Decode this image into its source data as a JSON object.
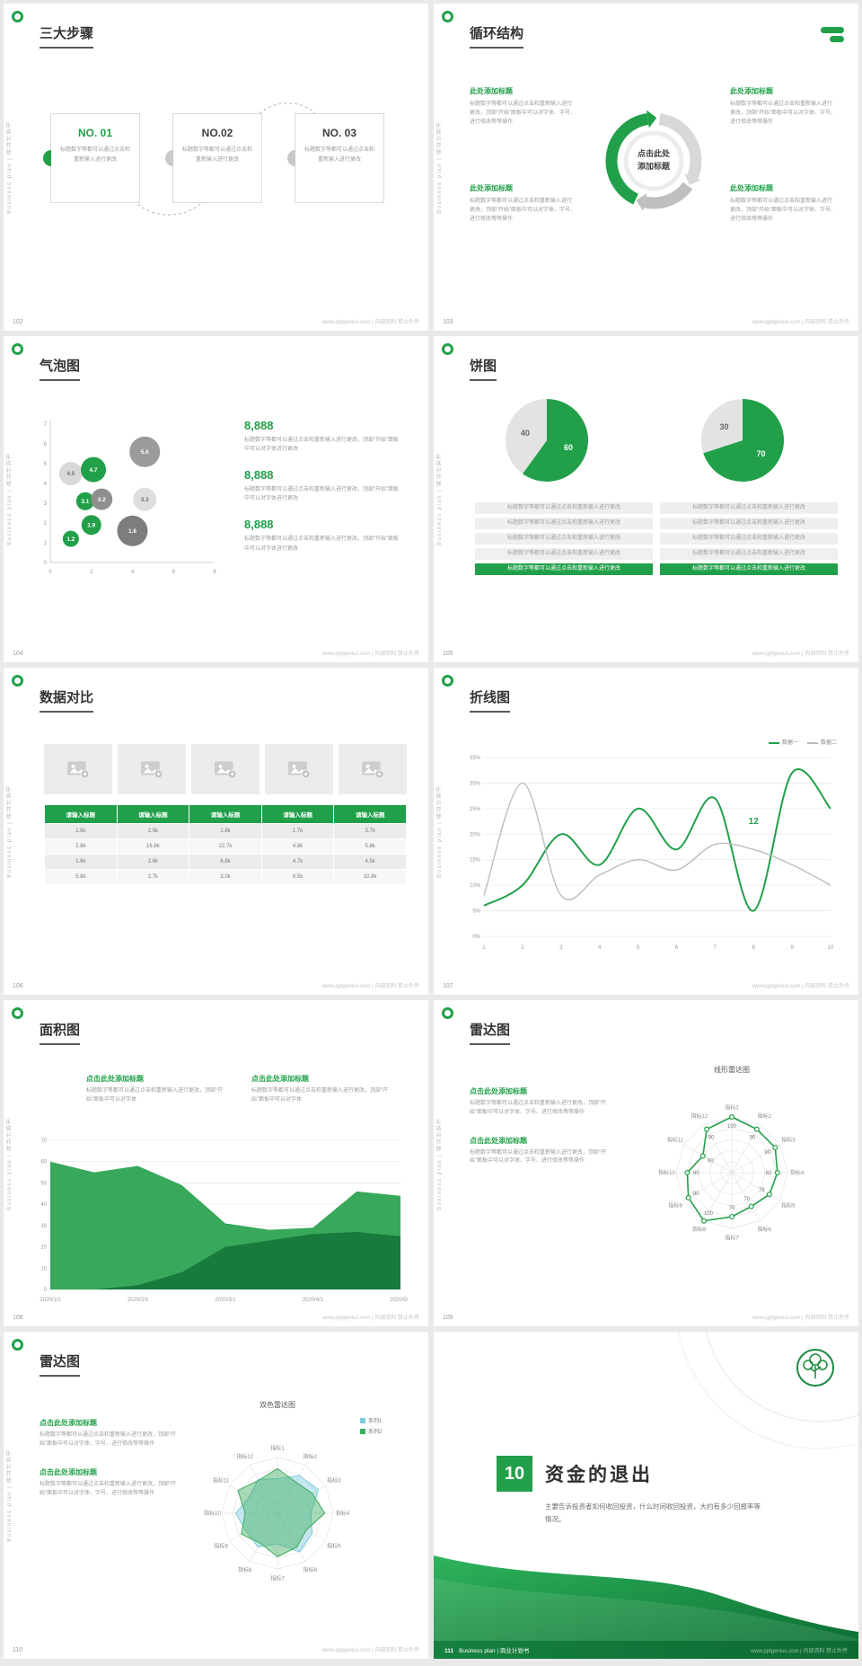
{
  "theme": {
    "accent": "#21a049",
    "accent_dark": "#0f7d3c",
    "pie_gray": "#e3e3e3",
    "line_gray": "#bcbcbc",
    "radar_teal": "#7fcadb",
    "radar_green": "#3fae5f"
  },
  "chrome": {
    "sidebar_text": "Business plan | 商业计划书",
    "footer_text": "www.pptgenius.com | 内部资料 禁止外传"
  },
  "slides": {
    "s102": {
      "page": "102",
      "title": "三大步骤",
      "steps": [
        {
          "no": "NO. 01",
          "body": "标题数字等都可以通过点击和重新输入进行更改"
        },
        {
          "no": "NO.02",
          "body": "标题数字等都可以通过点击和重新输入进行更改"
        },
        {
          "no": "NO. 03",
          "body": "标题数字等都可以通过点击和重新输入进行更改"
        }
      ]
    },
    "s103": {
      "page": "103",
      "title": "循环结构",
      "center_label": "点击此处\n添加标题",
      "items": [
        {
          "title": "此处添加标题",
          "body": "标题数字等都可以通过点击和重新输入进行更改，顶部“开始”面板中可以对字体、字号、进行修改等等操作"
        },
        {
          "title": "此处添加标题",
          "body": "标题数字等都可以通过点击和重新输入进行更改，顶部“开始”面板中可以对字体、字号、进行修改等等操作"
        },
        {
          "title": "此处添加标题",
          "body": "标题数字等都可以通过点击和重新输入进行更改，顶部“开始”面板中可以对字体、字号、进行修改等等操作"
        },
        {
          "title": "此处添加标题",
          "body": "标题数字等都可以通过点击和重新输入进行更改，顶部“开始”面板中可以对字体、字号、进行修改等等操作"
        }
      ]
    },
    "s104": {
      "page": "104",
      "title": "气泡图",
      "stats": [
        {
          "value": "8,888",
          "body": "标题数字等都可以通过点击和重新输入进行更改，顶部“开始”面板中可以对字体进行更改"
        },
        {
          "value": "8,888",
          "body": "标题数字等都可以通过点击和重新输入进行更改，顶部“开始”面板中可以对字体进行更改"
        },
        {
          "value": "8,888",
          "body": "标题数字等都可以通过点击和重新输入进行更改，顶部“开始”面板中可以对字体进行更改"
        }
      ],
      "chart_data": {
        "type": "scatter",
        "xlim": [
          0,
          8
        ],
        "ylim": [
          0,
          7
        ],
        "points": [
          {
            "x": 1.0,
            "y": 4.5,
            "r": 13,
            "v": "4.5",
            "color": "#d9d9d9",
            "text": "#737373"
          },
          {
            "x": 2.1,
            "y": 4.7,
            "r": 14,
            "v": "4.7",
            "color": "#21a049",
            "text": "#ffffff"
          },
          {
            "x": 4.6,
            "y": 5.6,
            "r": 17,
            "v": "5.6",
            "color": "#9b9b9b",
            "text": "#ffffff"
          },
          {
            "x": 1.7,
            "y": 3.1,
            "r": 10,
            "v": "3.1",
            "color": "#21a049",
            "text": "#ffffff"
          },
          {
            "x": 2.5,
            "y": 3.2,
            "r": 12,
            "v": "3.2",
            "color": "#8f8f8f",
            "text": "#ffffff"
          },
          {
            "x": 4.6,
            "y": 3.2,
            "r": 13,
            "v": "3.2",
            "color": "#dedede",
            "text": "#737373"
          },
          {
            "x": 2.0,
            "y": 1.9,
            "r": 11,
            "v": "1.9",
            "color": "#21a049",
            "text": "#ffffff"
          },
          {
            "x": 1.0,
            "y": 1.2,
            "r": 9,
            "v": "1.2",
            "color": "#21a049",
            "text": "#ffffff"
          },
          {
            "x": 4.0,
            "y": 1.6,
            "r": 17,
            "v": "1.6",
            "color": "#7d7d7d",
            "text": "#ffffff"
          }
        ]
      }
    },
    "s105": {
      "page": "105",
      "title": "饼图",
      "row_text": "标题数字等都可以通过点击和重新输入进行更改",
      "row_highlight_text": "标题数字等都可以通过点击和重新输入进行更改",
      "rows_per_column": 5,
      "chart_data": {
        "type": "pie",
        "pies": [
          {
            "values": [
              60,
              40
            ],
            "labels": [
              "60",
              "40"
            ],
            "colors": [
              "#21a049",
              "#e3e3e3"
            ]
          },
          {
            "values": [
              70,
              30
            ],
            "labels": [
              "70",
              "30"
            ],
            "colors": [
              "#21a049",
              "#e3e3e3"
            ]
          }
        ]
      }
    },
    "s106": {
      "page": "106",
      "title": "数据对比",
      "image_count": 5,
      "chart_data": {
        "type": "table",
        "headers": [
          "请输入标题",
          "请输入标题",
          "请输入标题",
          "请输入标题",
          "请输入标题"
        ],
        "rows": [
          [
            "2.8k",
            "2.5k",
            "1.8k",
            "1.7k",
            "3.7k"
          ],
          [
            "2.8k",
            "16.8k",
            "22.7k",
            "4.8k",
            "5.8k"
          ],
          [
            "1.6k",
            "2.6k",
            "6.8k",
            "4.7k",
            "4.5k"
          ],
          [
            "5.8k",
            "2.7k",
            "3.0k",
            "6.5k",
            "10.8k"
          ]
        ]
      }
    },
    "s107": {
      "page": "107",
      "title": "折线图",
      "legend": [
        {
          "label": "数据一"
        },
        {
          "label": "数据二"
        }
      ],
      "chart_data": {
        "type": "line",
        "x": [
          1,
          2,
          3,
          4,
          5,
          6,
          7,
          8,
          9,
          10
        ],
        "ylim": [
          0,
          35
        ],
        "yticks": [
          "0%",
          "5%",
          "10%",
          "15%",
          "20%",
          "25%",
          "30%",
          "35%"
        ],
        "series": [
          {
            "name": "数据一",
            "color": "#21a049",
            "width": 2,
            "values": [
              6,
              10,
              20,
              14,
              25,
              17,
              27,
              5,
              32,
              25
            ]
          },
          {
            "name": "数据二",
            "color": "#bcbcbc",
            "width": 1.4,
            "values": [
              8,
              30,
              8,
              12,
              15,
              13,
              18,
              17,
              14,
              10
            ]
          }
        ],
        "annotation": {
          "text": "12",
          "x": 8,
          "y": 22
        }
      }
    },
    "s108": {
      "page": "108",
      "title": "面积图",
      "blocks": [
        {
          "title": "点击此处添加标题",
          "body": "标题数字等都可以通过点击和重新输入进行更改，顶部“开始”面板中可以对字体"
        },
        {
          "title": "点击此处添加标题",
          "body": "标题数字等都可以通过点击和重新输入进行更改，顶部“开始”面板中可以对字体"
        }
      ],
      "chart_data": {
        "type": "area",
        "x_labels": [
          "2020/1/1",
          "2020/2/1",
          "2020/3/1",
          "2020/4/1",
          "2020/5/1"
        ],
        "ylim": [
          0,
          70
        ],
        "yticks": [
          0,
          10,
          20,
          30,
          40,
          50,
          60,
          70
        ],
        "series": [
          {
            "color": "#2da351",
            "opacity": 0.95,
            "values": [
              60,
              55,
              58,
              49,
              31,
              28,
              29,
              46,
              44
            ]
          },
          {
            "color": "#16743a",
            "opacity": 0.9,
            "values": [
              0,
              0,
              2,
              8,
              20,
              23,
              26,
              27,
              25
            ]
          }
        ]
      }
    },
    "s109": {
      "page": "109",
      "title": "雷达图",
      "chart_title": "线形雷达图",
      "blocks": [
        {
          "title": "点击此处添加标题",
          "body": "标题数字等都可以通过点击和重新输入进行更改，顶部“开始”面板中可以对字体、字号、进行修改等等操作"
        },
        {
          "title": "点击此处添加标题",
          "body": "标题数字等都可以通过点击和重新输入进行更改，顶部“开始”面板中可以对字体、字号、进行修改等等操作"
        }
      ],
      "chart_data": {
        "type": "radar",
        "labels": [
          "指标1",
          "指标2",
          "指标3",
          "指标4",
          "指标5",
          "指标6",
          "指标7",
          "指标8",
          "指标9",
          "指标10",
          "指标11",
          "指标12"
        ],
        "max": 100,
        "values": [
          100,
          90,
          90,
          82,
          78,
          70,
          79,
          100,
          90,
          80,
          60,
          90
        ],
        "color": "#21a049"
      }
    },
    "s110": {
      "page": "110",
      "title": "雷达图",
      "chart_title": "双色雷达图",
      "legend": [
        {
          "label": "系列1"
        },
        {
          "label": "系列2"
        }
      ],
      "blocks": [
        {
          "title": "点击此处添加标题",
          "body": "标题数字等都可以通过点击和重新输入进行更改，顶部“开始”面板中可以对字体、字号、进行修改等等操作"
        },
        {
          "title": "点击此处添加标题",
          "body": "标题数字等都可以通过点击和重新输入进行更改，顶部“开始”面板中可以对字体、字号、进行修改等等操作"
        }
      ],
      "chart_data": {
        "type": "radar",
        "labels": [
          "指标1",
          "指标2",
          "指标3",
          "指标4",
          "指标5",
          "指标6",
          "指标7",
          "指标8",
          "指标9",
          "指标10",
          "指标11",
          "指标12"
        ],
        "max": 100,
        "series": [
          {
            "name": "系列1",
            "color": "#7fcadb",
            "values": [
              62,
              78,
              85,
              60,
              72,
              80,
              55,
              70,
              65,
              75,
              58,
              70
            ]
          },
          {
            "name": "系列2",
            "color": "#3fae5f",
            "values": [
              80,
              65,
              72,
              85,
              60,
              70,
              78,
              62,
              75,
              58,
              82,
              68
            ]
          }
        ]
      }
    },
    "s111": {
      "page": "111",
      "section_number": "10",
      "section_title": "资金的退出",
      "body": "主要告诉投资者如何收回投资，什么时间收回投资，大约有多少回报率等情况。",
      "brand": "Business plan | 商业计划书"
    }
  }
}
